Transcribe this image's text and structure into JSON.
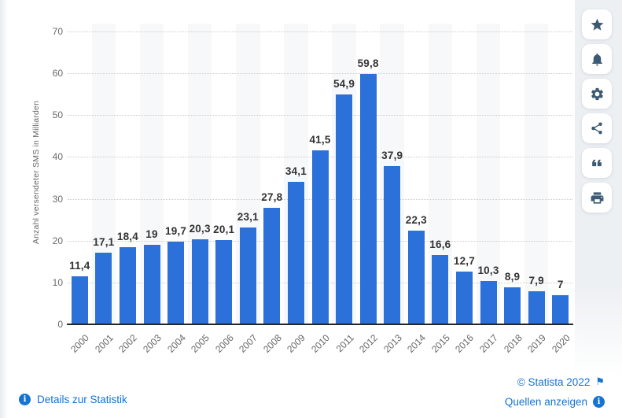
{
  "chart_data": {
    "type": "bar",
    "title": "",
    "categories": [
      "2000",
      "2001",
      "2002",
      "2003",
      "2004",
      "2005",
      "2006",
      "2007",
      "2008",
      "2009",
      "2010",
      "2011",
      "2012",
      "2013",
      "2014",
      "2015",
      "2016",
      "2017",
      "2018",
      "2019",
      "2020"
    ],
    "values": [
      11.4,
      17.1,
      18.4,
      19,
      19.7,
      20.3,
      20.1,
      23.1,
      27.8,
      34.1,
      41.5,
      54.9,
      59.8,
      37.9,
      22.3,
      16.6,
      12.7,
      10.3,
      8.9,
      7.9,
      7
    ],
    "value_labels": [
      "11,4",
      "17,1",
      "18,4",
      "19",
      "19,7",
      "20,3",
      "20,1",
      "23,1",
      "27,8",
      "34,1",
      "41,5",
      "54,9",
      "59,8",
      "37,9",
      "22,3",
      "16,6",
      "12,7",
      "10,3",
      "8,9",
      "7,9",
      "7"
    ],
    "xlabel": "",
    "ylabel": "Anzahl versendeter SMS in Milliarden",
    "ylim": [
      0,
      70
    ],
    "yticks": [
      0,
      10,
      20,
      30,
      40,
      50,
      60,
      70
    ],
    "grid": true,
    "legend": "none",
    "bar_color": "#2C71D9"
  },
  "toolbar": {
    "buttons": [
      {
        "icon": "star-icon"
      },
      {
        "icon": "bell-icon"
      },
      {
        "icon": "gear-icon"
      },
      {
        "icon": "share-icon"
      },
      {
        "icon": "quote-icon"
      },
      {
        "icon": "printer-icon"
      }
    ]
  },
  "footer": {
    "details_label": "Details zur Statistik",
    "copyright": "© Statista 2022",
    "sources_label": "Quellen anzeigen"
  },
  "colors": {
    "bar": "#2C71D9",
    "link": "#1573D4",
    "icon": "#3D5A74",
    "grid": "#CCCCCC",
    "band": "#F7F8FA",
    "axis": "#262626",
    "rail_bg": "#EDF0F3"
  }
}
